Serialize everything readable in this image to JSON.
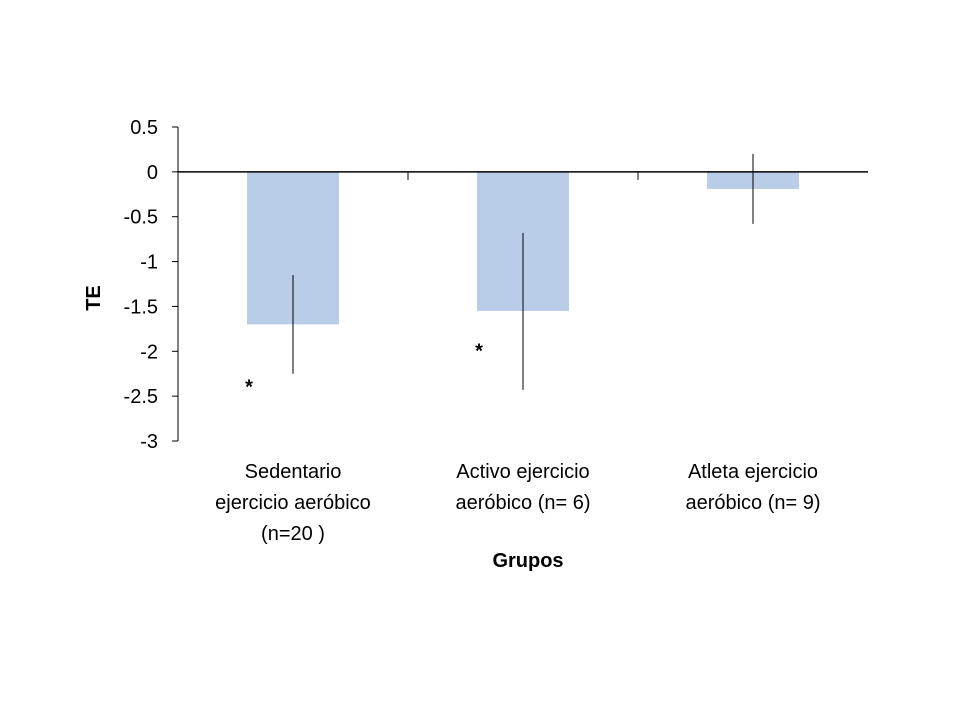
{
  "chart_data": {
    "type": "bar",
    "title": "",
    "xlabel": "Grupos",
    "ylabel": "TE",
    "ylim": [
      -3,
      0.5
    ],
    "yticks": [
      "0.5",
      "0",
      "-0.5",
      "-1",
      "-1.5",
      "-2",
      "-2.5",
      "-3"
    ],
    "ytick_values": [
      0.5,
      0,
      -0.5,
      -1,
      -1.5,
      -2,
      -2.5,
      -3
    ],
    "categories": [
      [
        "Sedentario",
        "ejercicio aeróbico",
        "(n=20 )"
      ],
      [
        "Activo ejercicio",
        "aeróbico (n= 6)"
      ],
      [
        "Atleta ejercicio",
        "aeróbico (n= 9)"
      ]
    ],
    "values": [
      -1.7,
      -1.55,
      -0.19
    ],
    "error_low": [
      -2.25,
      -2.43,
      -0.58
    ],
    "error_high": [
      -1.15,
      -0.68,
      0.2
    ],
    "annotations": [
      {
        "text": "*",
        "category": 0,
        "y": -2.36
      },
      {
        "text": "*",
        "category": 1,
        "y": -1.96
      }
    ],
    "bar_color": "#b9cde8",
    "grid": false,
    "legend": "none"
  }
}
